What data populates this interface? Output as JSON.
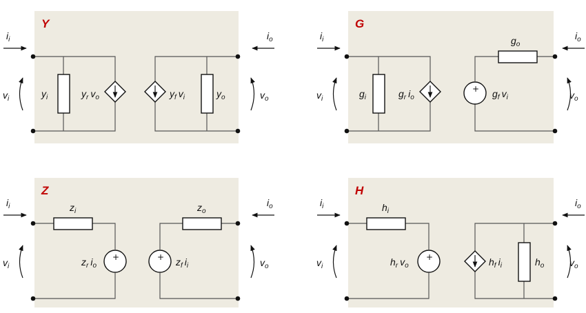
{
  "colors": {
    "panel": "#eeebe1",
    "title": "#c00000",
    "ink": "#111111"
  },
  "networks": {
    "y": {
      "title": "Y",
      "ii": {
        "b": "i",
        "s": "i"
      },
      "io": {
        "b": "i",
        "s": "o"
      },
      "vi": {
        "b": "v",
        "s": "i"
      },
      "vo": {
        "b": "v",
        "s": "o"
      },
      "p1": {
        "b": "y",
        "s": "i"
      },
      "p2a": {
        "b": "y",
        "s": "r"
      },
      "p2b": {
        "b": "v",
        "s": "o"
      },
      "p3a": {
        "b": "y",
        "s": "f"
      },
      "p3b": {
        "b": "v",
        "s": "i"
      },
      "p4": {
        "b": "y",
        "s": "o"
      }
    },
    "g": {
      "title": "G",
      "ii": {
        "b": "i",
        "s": "i"
      },
      "io": {
        "b": "i",
        "s": "o"
      },
      "vi": {
        "b": "v",
        "s": "i"
      },
      "vo": {
        "b": "v",
        "s": "o"
      },
      "p1": {
        "b": "g",
        "s": "i"
      },
      "p2a": {
        "b": "g",
        "s": "r"
      },
      "p2b": {
        "b": "i",
        "s": "o"
      },
      "p3a": {
        "b": "g",
        "s": "f"
      },
      "p3b": {
        "b": "v",
        "s": "i"
      },
      "p4": {
        "b": "g",
        "s": "o"
      }
    },
    "z": {
      "title": "Z",
      "ii": {
        "b": "i",
        "s": "i"
      },
      "io": {
        "b": "i",
        "s": "o"
      },
      "vi": {
        "b": "v",
        "s": "i"
      },
      "vo": {
        "b": "v",
        "s": "o"
      },
      "p1": {
        "b": "z",
        "s": "i"
      },
      "p2a": {
        "b": "z",
        "s": "r"
      },
      "p2b": {
        "b": "i",
        "s": "o"
      },
      "p3a": {
        "b": "z",
        "s": "f"
      },
      "p3b": {
        "b": "i",
        "s": "i"
      },
      "p4": {
        "b": "z",
        "s": "o"
      }
    },
    "h": {
      "title": "H",
      "ii": {
        "b": "i",
        "s": "i"
      },
      "io": {
        "b": "i",
        "s": "o"
      },
      "vi": {
        "b": "v",
        "s": "i"
      },
      "vo": {
        "b": "v",
        "s": "o"
      },
      "p1": {
        "b": "h",
        "s": "i"
      },
      "p2a": {
        "b": "h",
        "s": "r"
      },
      "p2b": {
        "b": "v",
        "s": "o"
      },
      "p3a": {
        "b": "h",
        "s": "f"
      },
      "p3b": {
        "b": "i",
        "s": "i"
      },
      "p4": {
        "b": "h",
        "s": "o"
      }
    }
  },
  "plus_sign": "+"
}
